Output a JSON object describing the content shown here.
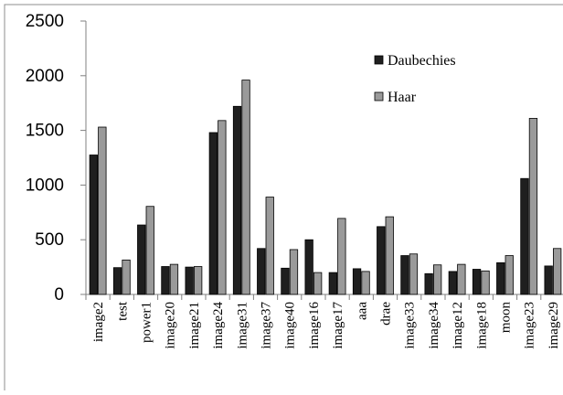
{
  "chart_data": {
    "type": "bar",
    "title": "",
    "xlabel": "",
    "ylabel": "",
    "ylim": [
      0,
      2500
    ],
    "yticks": [
      0,
      500,
      1000,
      1500,
      2000,
      2500
    ],
    "grid": false,
    "legend_position": "top-right",
    "categories": [
      "image2",
      "test",
      "power1",
      "image20",
      "image21",
      "image24",
      "image31",
      "image37",
      "image40",
      "image16",
      "image17",
      "aaa",
      "drae",
      "image33",
      "image34",
      "image12",
      "image18",
      "moon",
      "image23",
      "image29"
    ],
    "series": [
      {
        "name": "Daubechies",
        "color": "#1f1f1f",
        "values": [
          1275,
          245,
          635,
          255,
          250,
          1480,
          1720,
          420,
          240,
          500,
          200,
          235,
          620,
          355,
          190,
          210,
          230,
          290,
          1060,
          260
        ]
      },
      {
        "name": "Haar",
        "color": "#9a9a9a",
        "values": [
          1530,
          315,
          805,
          275,
          255,
          1590,
          1960,
          890,
          410,
          200,
          695,
          210,
          710,
          370,
          270,
          275,
          215,
          355,
          1610,
          420
        ]
      }
    ]
  }
}
